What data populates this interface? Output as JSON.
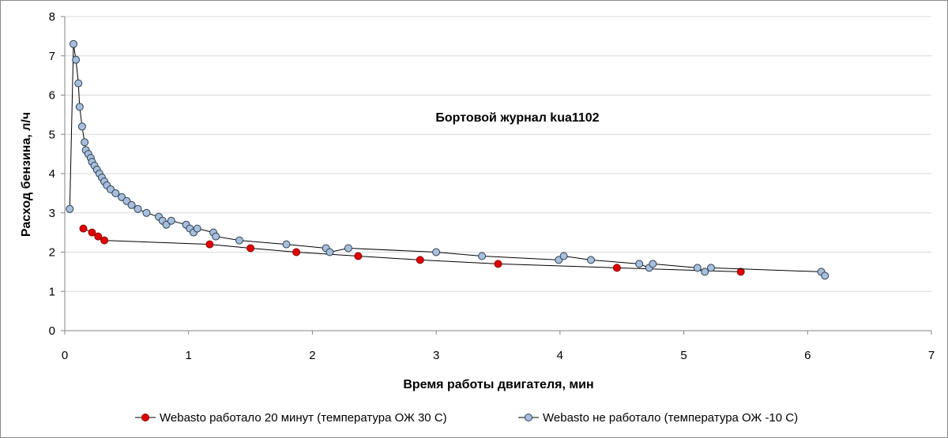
{
  "chart_data": {
    "type": "scatter",
    "title": "Бортовой журнал kua1102",
    "xlabel": "Время работы двигателя, мин",
    "ylabel": "Расход бензина, л/ч",
    "xlim": [
      0,
      7
    ],
    "ylim": [
      0,
      8
    ],
    "xticks": [
      "0",
      "1",
      "2",
      "3",
      "4",
      "5",
      "6",
      "7"
    ],
    "yticks": [
      "0",
      "1",
      "2",
      "3",
      "4",
      "5",
      "6",
      "7",
      "8"
    ],
    "grid": "horizontal",
    "legend_position": "bottom",
    "series": [
      {
        "name": "Webasto работало 20 минут (температура ОЖ 30 С)",
        "color": "#e00000",
        "points": [
          [
            0.15,
            2.6
          ],
          [
            0.22,
            2.5
          ],
          [
            0.27,
            2.4
          ],
          [
            0.32,
            2.3
          ],
          [
            1.17,
            2.2
          ],
          [
            1.5,
            2.1
          ],
          [
            1.87,
            2.0
          ],
          [
            2.37,
            1.9
          ],
          [
            2.87,
            1.8
          ],
          [
            3.5,
            1.7
          ],
          [
            4.46,
            1.6
          ],
          [
            5.46,
            1.5
          ]
        ]
      },
      {
        "name": "Webasto не работало (температура ОЖ -10 С)",
        "color": "#a7bfdc",
        "points": [
          [
            0.04,
            3.1
          ],
          [
            0.07,
            7.3
          ],
          [
            0.09,
            6.9
          ],
          [
            0.11,
            6.3
          ],
          [
            0.12,
            5.7
          ],
          [
            0.14,
            5.2
          ],
          [
            0.16,
            4.8
          ],
          [
            0.17,
            4.6
          ],
          [
            0.19,
            4.5
          ],
          [
            0.21,
            4.4
          ],
          [
            0.22,
            4.3
          ],
          [
            0.24,
            4.2
          ],
          [
            0.26,
            4.1
          ],
          [
            0.28,
            4.0
          ],
          [
            0.3,
            3.9
          ],
          [
            0.32,
            3.8
          ],
          [
            0.34,
            3.7
          ],
          [
            0.37,
            3.6
          ],
          [
            0.41,
            3.5
          ],
          [
            0.46,
            3.4
          ],
          [
            0.5,
            3.3
          ],
          [
            0.54,
            3.2
          ],
          [
            0.59,
            3.1
          ],
          [
            0.66,
            3.0
          ],
          [
            0.76,
            2.9
          ],
          [
            0.79,
            2.8
          ],
          [
            0.82,
            2.7
          ],
          [
            0.86,
            2.8
          ],
          [
            0.98,
            2.7
          ],
          [
            1.01,
            2.6
          ],
          [
            1.04,
            2.5
          ],
          [
            1.07,
            2.6
          ],
          [
            1.2,
            2.5
          ],
          [
            1.22,
            2.4
          ],
          [
            1.41,
            2.3
          ],
          [
            1.79,
            2.2
          ],
          [
            2.11,
            2.1
          ],
          [
            2.14,
            2.0
          ],
          [
            2.29,
            2.1
          ],
          [
            3.0,
            2.0
          ],
          [
            3.37,
            1.9
          ],
          [
            3.99,
            1.8
          ],
          [
            4.03,
            1.9
          ],
          [
            4.25,
            1.8
          ],
          [
            4.64,
            1.7
          ],
          [
            4.72,
            1.6
          ],
          [
            4.75,
            1.7
          ],
          [
            5.11,
            1.6
          ],
          [
            5.17,
            1.5
          ],
          [
            5.22,
            1.6
          ],
          [
            6.11,
            1.5
          ],
          [
            6.14,
            1.4
          ]
        ]
      }
    ]
  }
}
